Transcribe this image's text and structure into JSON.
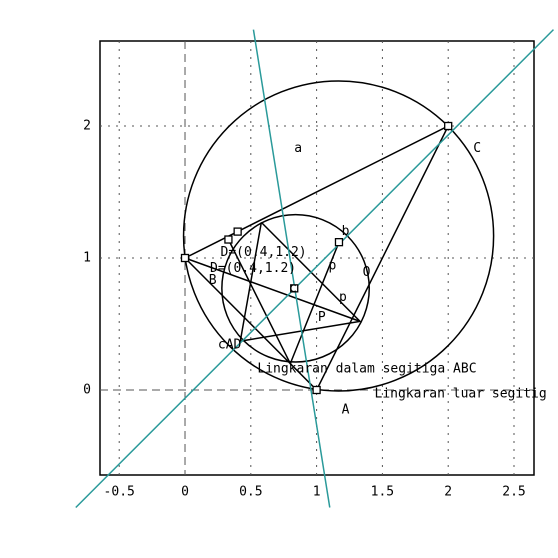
{
  "chart_data": {
    "type": "geometry",
    "xlim": [
      -0.646,
      2.652
    ],
    "ylim": [
      -0.644,
      2.644
    ],
    "xticks": [
      -0.5,
      0,
      0.5,
      1,
      1.5,
      2,
      2.5
    ],
    "yticks": [
      0,
      1,
      2
    ],
    "grid": true,
    "points": {
      "x": [
        0,
        1,
        2,
        0.4,
        0.33,
        1.17,
        0.83
      ],
      "y": [
        1,
        0,
        2,
        1.2,
        1.14,
        1.12,
        0.77
      ]
    },
    "circles": [
      {
        "cx": 1.167,
        "cy": 1.167,
        "r": 1.178
      },
      {
        "cx": 0.84,
        "cy": 0.77,
        "r": 0.56
      }
    ],
    "segments": [
      {
        "x": [
          1,
          0,
          2,
          1
        ],
        "y": [
          0,
          1,
          2,
          0
        ],
        "color": "#000000"
      },
      {
        "x": [
          0.58,
          0.42,
          1.33,
          0.58
        ],
        "y": [
          1.27,
          0.37,
          0.52,
          1.27
        ],
        "color": "#000000"
      },
      {
        "x": [
          0,
          1.33
        ],
        "y": [
          1,
          0.52
        ],
        "color": "#000000"
      },
      {
        "x": [
          0.33,
          0.8,
          1.17
        ],
        "y": [
          1.14,
          0.2,
          1.12
        ],
        "color": "#000000"
      },
      {
        "x": [
          0.52,
          1.1
        ],
        "y": [
          2.73,
          -0.89
        ],
        "color": "#2a9a9a"
      },
      {
        "x": [
          -0.83,
          2.8
        ],
        "y": [
          -0.89,
          2.73
        ],
        "color": "#2a9a9a"
      }
    ],
    "labels": [
      {
        "text": "a",
        "x": 0.83,
        "y": 1.83,
        "color": "#000000"
      },
      {
        "text": "C",
        "x": 2.19,
        "y": 1.83,
        "color": "#000000"
      },
      {
        "text": "b",
        "x": 1.19,
        "y": 1.2,
        "color": "#000000"
      },
      {
        "text": "D=(0.4,1.2)",
        "x": 0.27,
        "y": 1.04,
        "color": "#000000"
      },
      {
        "text": "D=(0.4,1.2)",
        "x": 0.19,
        "y": 0.92,
        "color": "#000000"
      },
      {
        "text": "B",
        "x": 0.18,
        "y": 0.83,
        "color": "#000000"
      },
      {
        "text": "p",
        "x": 1.09,
        "y": 0.94,
        "color": "#2a9a9a"
      },
      {
        "text": "O",
        "x": 1.35,
        "y": 0.89,
        "color": "#000000"
      },
      {
        "text": "p",
        "x": 1.17,
        "y": 0.7,
        "color": "#2a9a9a"
      },
      {
        "text": "c",
        "x": 0.79,
        "y": 0.77,
        "color": "#000000"
      },
      {
        "text": "P",
        "x": 1.01,
        "y": 0.55,
        "color": "#000000"
      },
      {
        "text": "cAD",
        "x": 0.25,
        "y": 0.34,
        "color": "#000000"
      },
      {
        "text": "Lingkaran dalam segitiga ABC",
        "x": 0.55,
        "y": 0.16,
        "color": "#000000"
      },
      {
        "text": "Lingkaran luar segitig",
        "x": 1.44,
        "y": -0.03,
        "color": "#000000"
      },
      {
        "text": "A",
        "x": 1.19,
        "y": -0.15,
        "color": "#000000"
      }
    ]
  }
}
